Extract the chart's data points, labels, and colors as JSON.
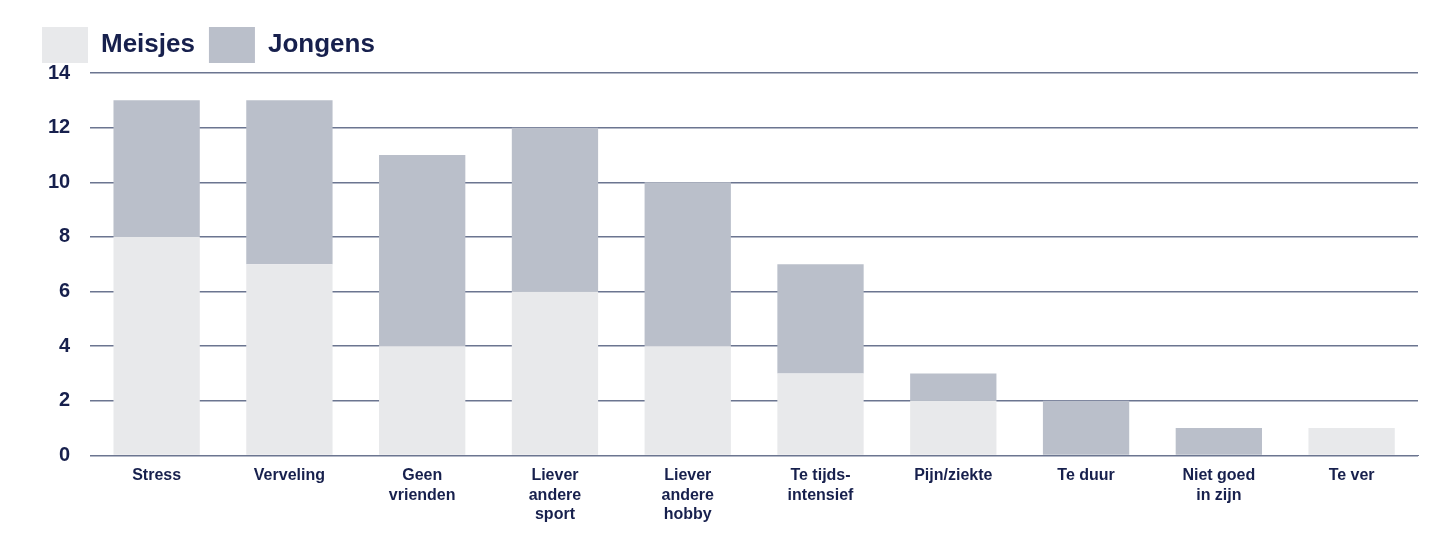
{
  "chart_data": {
    "type": "bar",
    "stacked": true,
    "categories": [
      "Stress",
      "Verveling",
      "Geen vrienden",
      "Liever andere sport",
      "Liever andere hobby",
      "Te tijds-intensief",
      "Pijn/ziekte",
      "Te duur",
      "Niet goed in zijn",
      "Te ver"
    ],
    "series": [
      {
        "name": "Meisjes",
        "color": "#e8e9eb",
        "values": [
          8,
          7,
          4,
          6,
          4,
          3,
          2,
          0,
          0,
          1
        ]
      },
      {
        "name": "Jongens",
        "color": "#babfca",
        "values": [
          5,
          6,
          7,
          6,
          6,
          4,
          1,
          2,
          1,
          0
        ]
      }
    ],
    "ylim": [
      0,
      14
    ],
    "yticks": [
      0,
      2,
      4,
      6,
      8,
      10,
      12,
      14
    ],
    "grid": "y",
    "legend": "top left"
  }
}
